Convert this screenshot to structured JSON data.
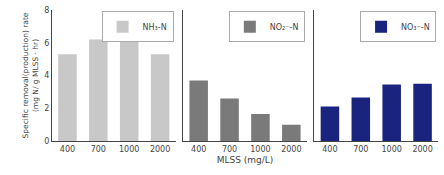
{
  "chart_data": [
    {
      "type": "bar",
      "categories": [
        "400",
        "700",
        "1000",
        "2000"
      ],
      "series": [
        {
          "name": "NH₃-N",
          "color": "#c8c8c8",
          "values": [
            5.3,
            6.2,
            6.05,
            5.3
          ]
        }
      ],
      "ylabel": "Specific removal(production) rate\n(mg N/ g MLSS · hr)",
      "ylim": [
        0,
        8
      ],
      "yticks": [
        0,
        2,
        4,
        6,
        8
      ],
      "grid": false,
      "legend": "upper right",
      "tick_labels": true
    },
    {
      "type": "bar",
      "categories": [
        "400",
        "700",
        "1000",
        "2000"
      ],
      "series": [
        {
          "name": "NO₂⁻-N",
          "color": "#7a7a7a",
          "values": [
            3.7,
            2.6,
            1.65,
            1.0
          ]
        }
      ],
      "xlabel": "MLSS (mg/L)",
      "ylim": [
        0,
        8
      ],
      "yticks": [
        0,
        2,
        4,
        6,
        8
      ],
      "grid": false,
      "legend": "upper right",
      "tick_labels": "x"
    },
    {
      "type": "bar",
      "categories": [
        "400",
        "700",
        "1000",
        "2000"
      ],
      "series": [
        {
          "name": "NO₃⁻-N",
          "color": "#1a237e",
          "values": [
            2.1,
            2.65,
            3.45,
            3.5
          ]
        }
      ],
      "ylim": [
        0,
        8
      ],
      "yticks": [
        0,
        2,
        4,
        6,
        8
      ],
      "grid": false,
      "legend": "upper right",
      "tick_labels": "x"
    }
  ]
}
